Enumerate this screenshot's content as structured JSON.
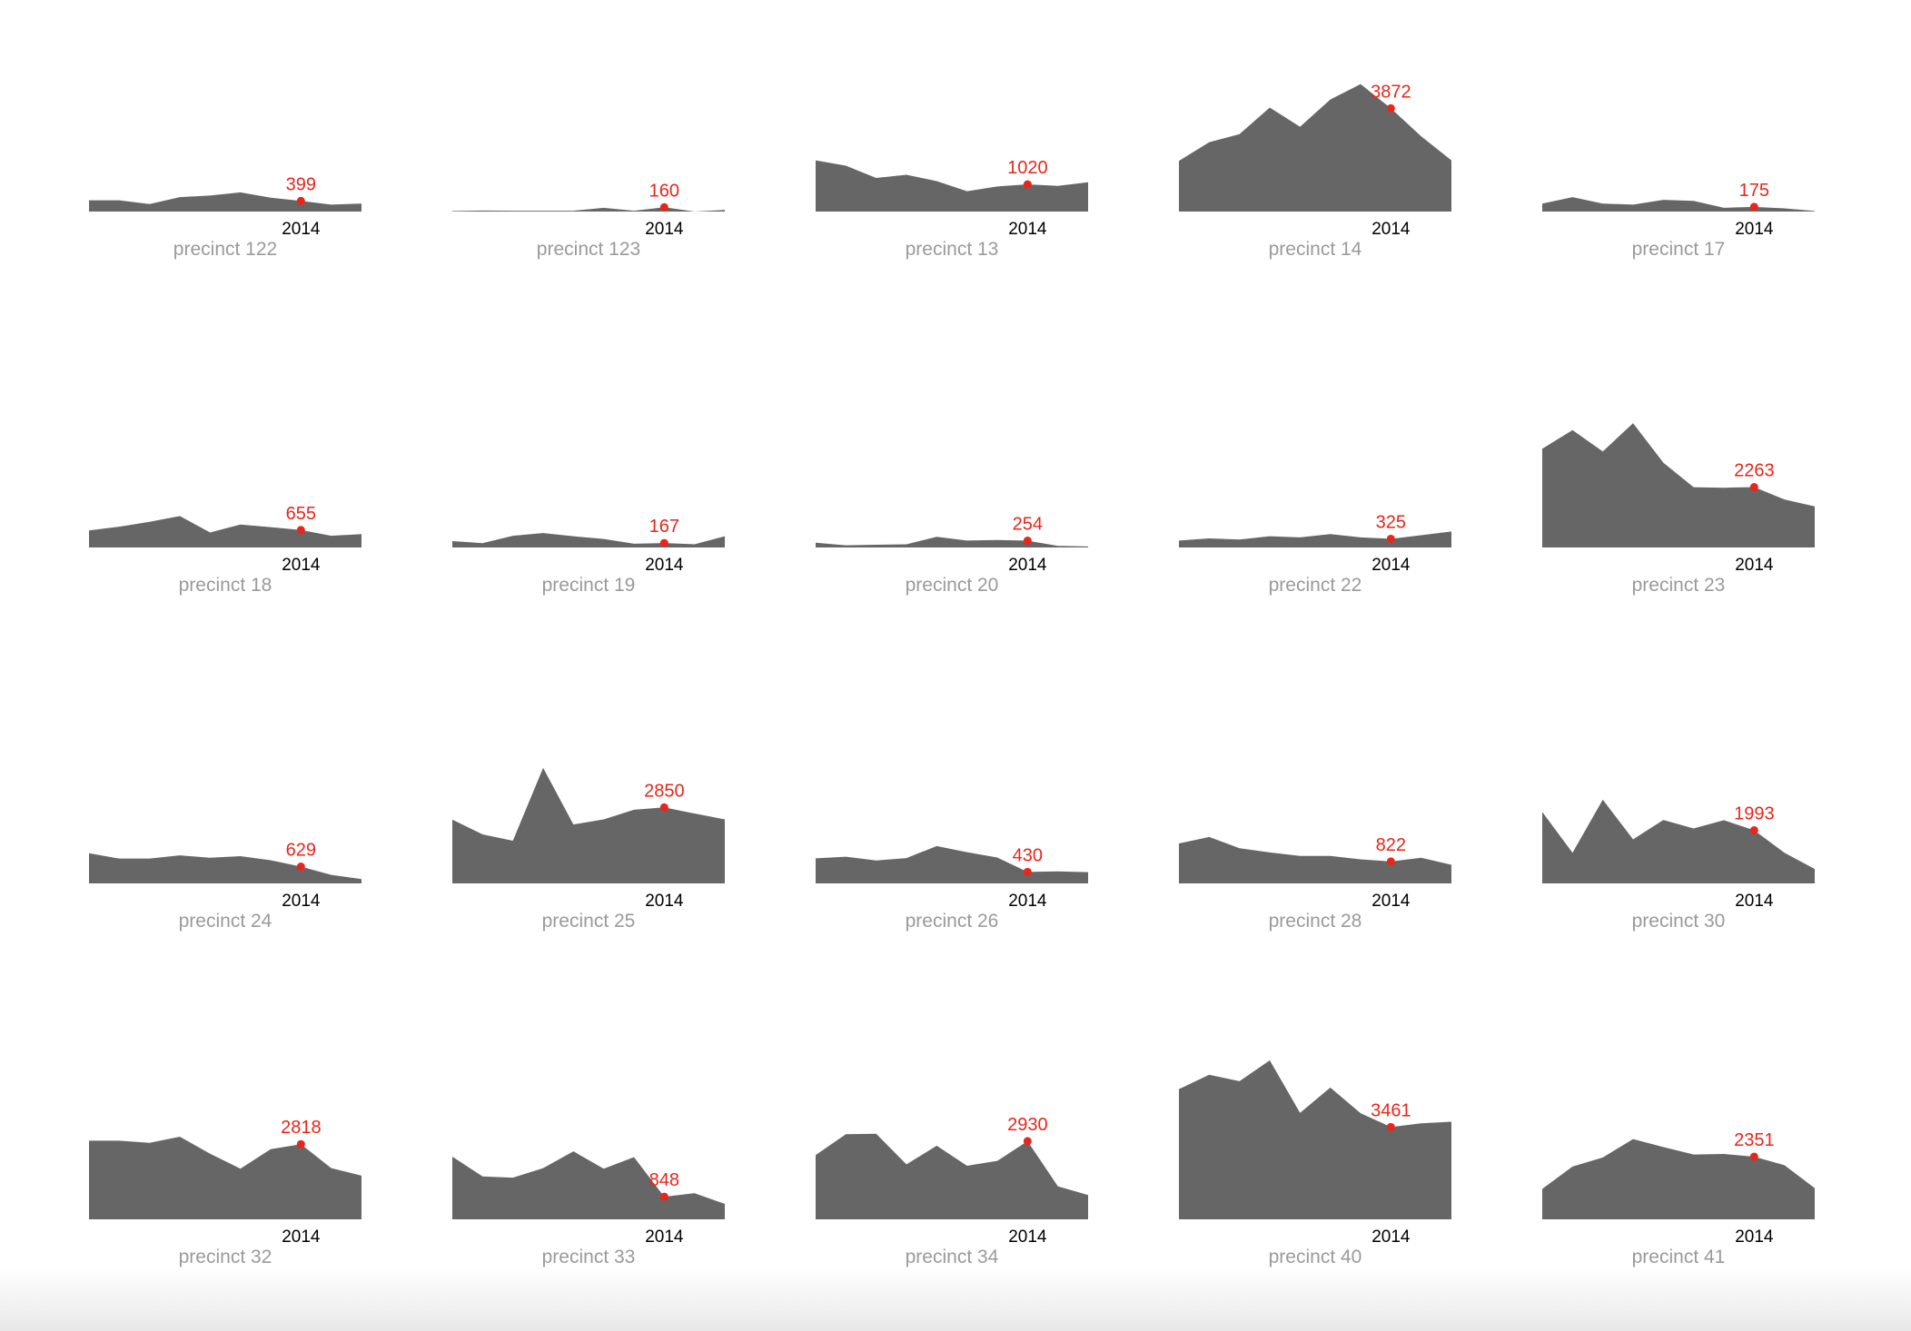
{
  "colors": {
    "area": "#666666",
    "highlight": "#e8261b",
    "year_label": "#000000",
    "caption": "#9a9a9a",
    "background": "#ffffff"
  },
  "chart_data": [
    {
      "type": "area",
      "title": "precinct 122",
      "highlight_year": "2014",
      "highlight_value": 399,
      "values": [
        420,
        420,
        280,
        540,
        600,
        720,
        520,
        399,
        260,
        300
      ]
    },
    {
      "type": "area",
      "title": "precinct 123",
      "highlight_year": "2014",
      "highlight_value": 160,
      "values": [
        20,
        40,
        30,
        30,
        30,
        140,
        30,
        160,
        0,
        60
      ]
    },
    {
      "type": "area",
      "title": "precinct 13",
      "highlight_year": "2014",
      "highlight_value": 1020,
      "values": [
        1920,
        1720,
        1260,
        1380,
        1140,
        760,
        940,
        1020,
        960,
        1100
      ]
    },
    {
      "type": "area",
      "title": "precinct 14",
      "highlight_year": "2014",
      "highlight_value": 3872,
      "values": [
        1900,
        2600,
        2900,
        3900,
        3180,
        4200,
        4780,
        3872,
        2820,
        1920
      ]
    },
    {
      "type": "area",
      "title": "precinct 17",
      "highlight_year": "2014",
      "highlight_value": 175,
      "values": [
        300,
        540,
        300,
        260,
        440,
        400,
        140,
        175,
        120,
        20
      ]
    },
    {
      "type": "area",
      "title": "precinct 18",
      "highlight_year": "2014",
      "highlight_value": 655,
      "values": [
        640,
        780,
        960,
        1180,
        560,
        860,
        760,
        655,
        440,
        500
      ]
    },
    {
      "type": "area",
      "title": "precinct 19",
      "highlight_year": "2014",
      "highlight_value": 167,
      "values": [
        240,
        160,
        440,
        540,
        420,
        320,
        140,
        167,
        120,
        420
      ]
    },
    {
      "type": "area",
      "title": "precinct 20",
      "highlight_year": "2014",
      "highlight_value": 254,
      "values": [
        180,
        80,
        100,
        120,
        400,
        260,
        280,
        254,
        60,
        40
      ]
    },
    {
      "type": "area",
      "title": "precinct 22",
      "highlight_year": "2014",
      "highlight_value": 325,
      "values": [
        260,
        340,
        300,
        420,
        380,
        500,
        380,
        325,
        460,
        600
      ]
    },
    {
      "type": "area",
      "title": "precinct 23",
      "highlight_year": "2014",
      "highlight_value": 2263,
      "values": [
        3700,
        4400,
        3600,
        4660,
        3180,
        2260,
        2240,
        2263,
        1800,
        1540
      ]
    },
    {
      "type": "area",
      "title": "precinct 24",
      "highlight_year": "2014",
      "highlight_value": 629,
      "values": [
        1130,
        930,
        930,
        1050,
        960,
        1020,
        870,
        629,
        320,
        160
      ]
    },
    {
      "type": "area",
      "title": "precinct 25",
      "highlight_year": "2014",
      "highlight_value": 2850,
      "values": [
        2390,
        1840,
        1600,
        4330,
        2210,
        2400,
        2760,
        2850,
        2620,
        2400
      ]
    },
    {
      "type": "area",
      "title": "precinct 26",
      "highlight_year": "2014",
      "highlight_value": 430,
      "values": [
        940,
        1000,
        860,
        950,
        1400,
        1170,
        970,
        430,
        450,
        420
      ]
    },
    {
      "type": "area",
      "title": "precinct 28",
      "highlight_year": "2014",
      "highlight_value": 822,
      "values": [
        1500,
        1740,
        1320,
        1160,
        1030,
        1030,
        900,
        822,
        960,
        700
      ]
    },
    {
      "type": "area",
      "title": "precinct 30",
      "highlight_year": "2014",
      "highlight_value": 1993,
      "values": [
        2680,
        1150,
        3140,
        1650,
        2380,
        2060,
        2370,
        1993,
        1150,
        540
      ]
    },
    {
      "type": "area",
      "title": "precinct 32",
      "highlight_year": "2014",
      "highlight_value": 2818,
      "values": [
        2950,
        2950,
        2870,
        3100,
        2460,
        1900,
        2630,
        2818,
        1920,
        1640
      ]
    },
    {
      "type": "area",
      "title": "precinct 33",
      "highlight_year": "2014",
      "highlight_value": 848,
      "values": [
        2350,
        1610,
        1560,
        1920,
        2550,
        1900,
        2330,
        848,
        980,
        580
      ]
    },
    {
      "type": "area",
      "title": "precinct 34",
      "highlight_year": "2014",
      "highlight_value": 2930,
      "values": [
        2410,
        3190,
        3210,
        2060,
        2760,
        2010,
        2190,
        2930,
        1240,
        910
      ]
    },
    {
      "type": "area",
      "title": "precinct 40",
      "highlight_year": "2014",
      "highlight_value": 3461,
      "values": [
        4880,
        5420,
        5180,
        5960,
        3990,
        4940,
        3980,
        3461,
        3600,
        3660
      ]
    },
    {
      "type": "area",
      "title": "precinct 41",
      "highlight_year": "2014",
      "highlight_value": 2351,
      "values": [
        1140,
        1980,
        2320,
        3010,
        2710,
        2430,
        2450,
        2351,
        2030,
        1170
      ]
    }
  ]
}
